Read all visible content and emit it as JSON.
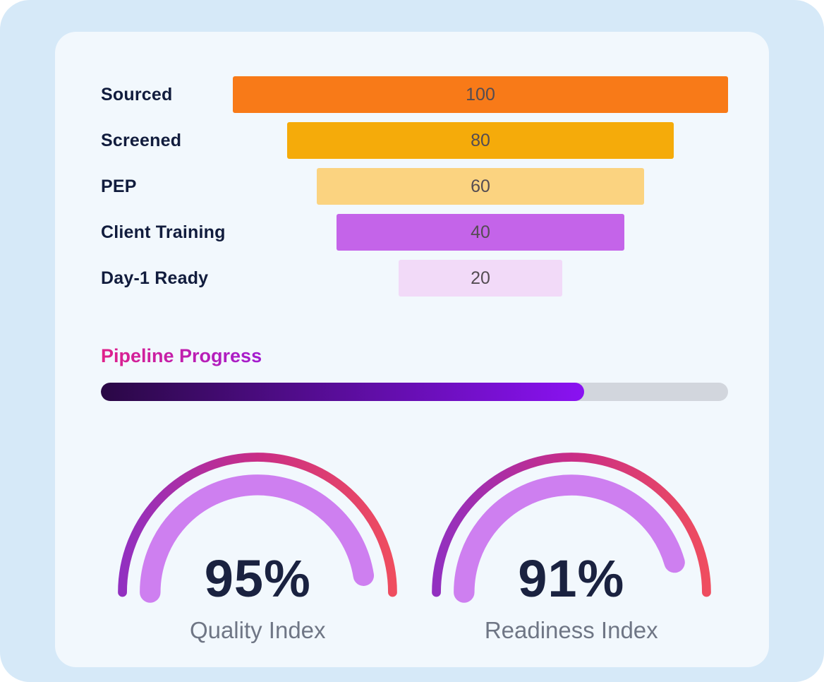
{
  "chart_data": [
    {
      "type": "funnel",
      "categories": [
        "Sourced",
        "Screened",
        "PEP",
        "Client Training",
        "Day-1 Ready"
      ],
      "values": [
        100,
        80,
        60,
        40,
        20
      ],
      "bar_width_pct": [
        100,
        78,
        66,
        58,
        33
      ],
      "bar_colors": [
        "#F87A18",
        "#F5AB0A",
        "#FBD380",
        "#C464E9",
        "#F2DAF8"
      ],
      "value_text_color": "#544C52",
      "label_color": "#111C3D",
      "legend": "none",
      "grid": "off"
    },
    {
      "type": "progress",
      "title": "Pipeline Progress",
      "percent": 77,
      "range": [
        0,
        100
      ],
      "track_color": "#D2D6DD",
      "fill_gradient": [
        "#2A0845",
        "#8A12F2"
      ],
      "title_gradient": [
        "#E0218A",
        "#A21CD0"
      ]
    },
    {
      "type": "gauge",
      "value_label": "95%",
      "percent": 95,
      "range": [
        0,
        100
      ],
      "caption": "Quality Index",
      "arc_gradient": [
        "#9230C0",
        "#C92D86",
        "#EF4D5F"
      ],
      "inner_color": "#CE7FF0"
    },
    {
      "type": "gauge",
      "value_label": "91%",
      "percent": 91,
      "range": [
        0,
        100
      ],
      "caption": "Readiness Index",
      "arc_gradient": [
        "#9230C0",
        "#C92D86",
        "#EF4D5F"
      ],
      "inner_color": "#CE7FF0"
    }
  ],
  "colors": {
    "page_bg": "#D6E9F8",
    "card_bg": "#F2F8FD",
    "percent_text": "#1A2240",
    "caption_text": "#6F7685"
  }
}
